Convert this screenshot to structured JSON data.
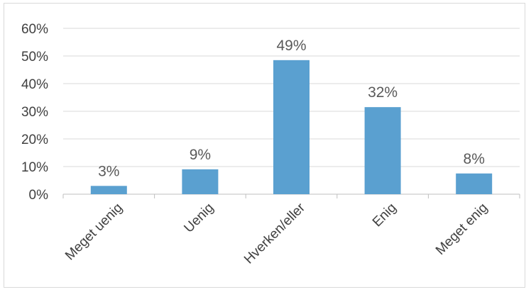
{
  "chart_data": {
    "type": "bar",
    "categories": [
      "Meget uenig",
      "Uenig",
      "Hverken/eller",
      "Enig",
      "Meget enig"
    ],
    "values": [
      0.03,
      0.09,
      0.485,
      0.315,
      0.075
    ],
    "data_labels": [
      "3%",
      "9%",
      "49%",
      "32%",
      "8%"
    ],
    "title": "",
    "xlabel": "",
    "ylabel": "",
    "ylim": [
      0,
      0.6
    ],
    "yticks": [
      0,
      0.1,
      0.2,
      0.3,
      0.4,
      0.5,
      0.6
    ],
    "ytick_labels": [
      "0%",
      "10%",
      "20%",
      "30%",
      "40%",
      "50%",
      "60%"
    ],
    "grid": true,
    "legend": "none",
    "bar_color": "#5aa0d0",
    "gridline_color": "#d9d9d9"
  }
}
